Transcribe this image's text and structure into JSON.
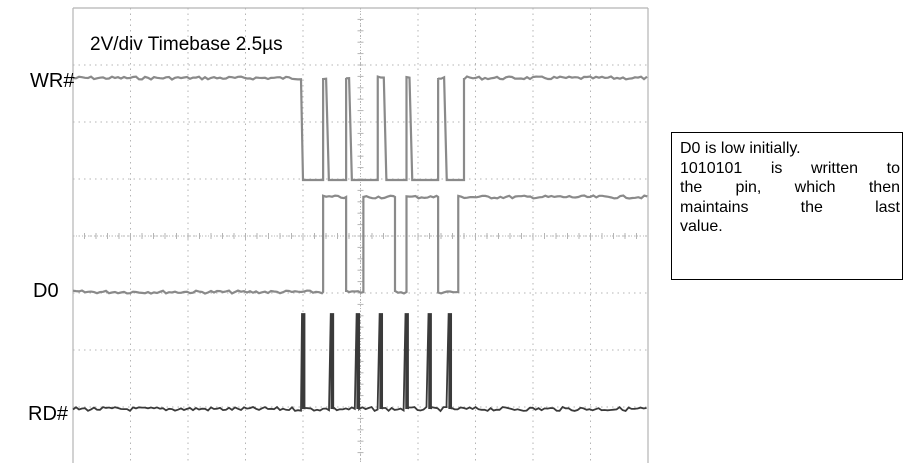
{
  "chart_data": {
    "type": "line",
    "title": "2V/div  Timebase 2.5µs",
    "grid": true,
    "series": [
      {
        "name": "WR#",
        "color": "#8a8a8a",
        "idle": "high",
        "pulses": [
          [
            4.0,
            4.35
          ],
          [
            4.45,
            4.75
          ],
          [
            4.85,
            5.3
          ],
          [
            5.45,
            5.8
          ],
          [
            5.9,
            6.35
          ],
          [
            6.5,
            6.8
          ]
        ]
      },
      {
        "name": "D0",
        "color": "#8a8a8a",
        "transitions": [
          [
            0,
            0
          ],
          [
            4.35,
            1
          ],
          [
            4.75,
            0
          ],
          [
            5.05,
            1
          ],
          [
            5.6,
            0
          ],
          [
            5.8,
            1
          ],
          [
            6.35,
            0
          ],
          [
            6.7,
            1
          ]
        ]
      },
      {
        "name": "RD#",
        "color": "#3a3a3a",
        "idle": "low",
        "spikes": [
          4.0,
          4.5,
          4.95,
          5.35,
          5.8,
          6.2,
          6.55
        ]
      }
    ]
  },
  "annotation": {
    "line1": "D0 is low initially.",
    "line2": [
      "1010101",
      "is",
      "written",
      "to"
    ],
    "line3": [
      "the",
      "pin,",
      "which",
      "then"
    ],
    "line4": [
      "maintains",
      "the",
      "last"
    ],
    "line5": "value."
  }
}
